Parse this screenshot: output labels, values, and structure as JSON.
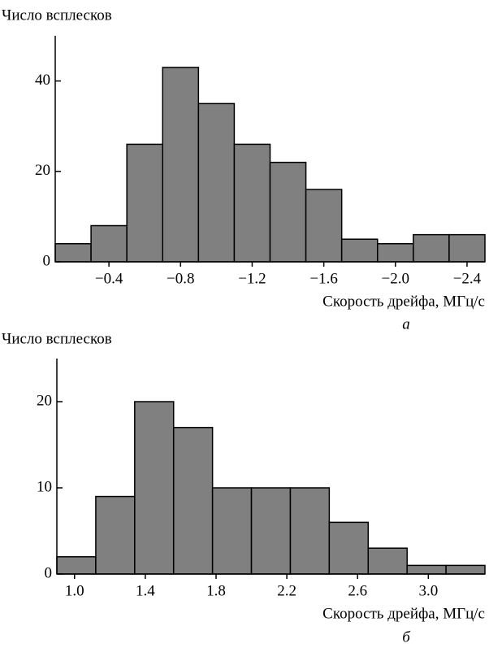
{
  "chart_data": [
    {
      "type": "histogram",
      "ylabel": "Число всплесков",
      "xlabel": "Скорость дрейфа, МГц/с",
      "caption": "а",
      "bins": [
        -0.1,
        -0.3,
        -0.5,
        -0.7,
        -0.9,
        -1.1,
        -1.3,
        -1.5,
        -1.7,
        -1.9,
        -2.1,
        -2.3,
        -2.5
      ],
      "values": [
        4,
        8,
        26,
        43,
        35,
        26,
        22,
        16,
        5,
        4,
        6,
        6
      ],
      "color": "#808080",
      "xlim": [
        -0.1,
        -2.5
      ],
      "xticks": [
        {
          "value": -0.4,
          "label": "−0.4"
        },
        {
          "value": -0.8,
          "label": "−0.8"
        },
        {
          "value": -1.2,
          "label": "−1.2"
        },
        {
          "value": -1.6,
          "label": "−1.6"
        },
        {
          "value": -2.0,
          "label": "−2.0"
        },
        {
          "value": -2.4,
          "label": "−2.4"
        }
      ],
      "ylim": [
        0,
        50
      ],
      "yticks": [
        0,
        20,
        40
      ]
    },
    {
      "type": "histogram",
      "ylabel": "Число всплесков",
      "xlabel": "Скорость дрейфа, МГц/с",
      "caption": "б",
      "bins": [
        0.9,
        1.12,
        1.34,
        1.56,
        1.78,
        2.0,
        2.22,
        2.44,
        2.66,
        2.88,
        3.1,
        3.32
      ],
      "values": [
        2,
        9,
        20,
        17,
        10,
        10,
        10,
        6,
        3,
        1,
        1
      ],
      "color": "#808080",
      "xlim": [
        0.9,
        3.32
      ],
      "xticks": [
        {
          "value": 1.0,
          "label": "1.0"
        },
        1.4,
        1.8,
        2.2,
        2.6,
        {
          "value": 3.0,
          "label": "3.0"
        }
      ],
      "ylim": [
        0,
        25
      ],
      "yticks": [
        0,
        10,
        20
      ]
    }
  ]
}
